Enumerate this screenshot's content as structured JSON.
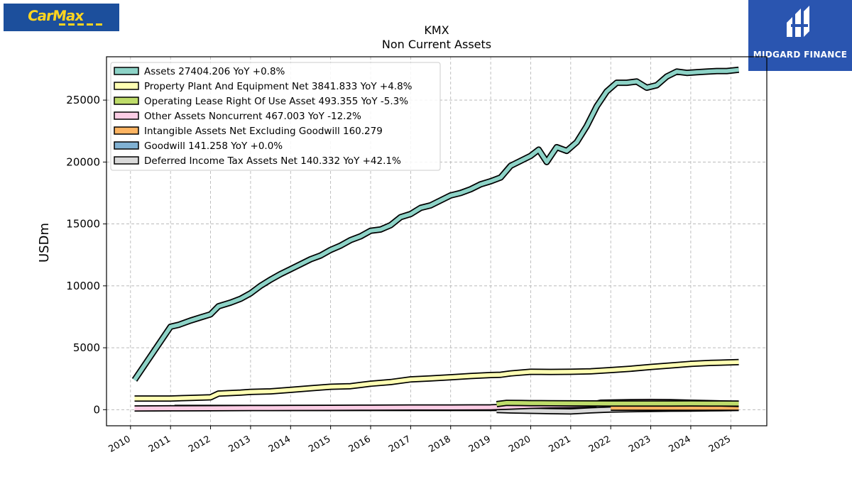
{
  "brand": {
    "logo_text": "CarMax",
    "partner_logo_text": "MIDGARD FINANCE"
  },
  "chart_data": {
    "type": "line",
    "title": "KMX",
    "subtitle": "Non Current  Assets",
    "xlabel": "",
    "ylabel": "USDm",
    "xlim": [
      2009.4,
      2025.9
    ],
    "ylim": [
      -1300,
      28500
    ],
    "x_ticks": [
      "2010",
      "2011",
      "2012",
      "2013",
      "2014",
      "2015",
      "2016",
      "2017",
      "2018",
      "2019",
      "2020",
      "2021",
      "2022",
      "2023",
      "2024",
      "2025"
    ],
    "y_ticks": [
      0,
      5000,
      10000,
      15000,
      20000,
      25000
    ],
    "grid": true,
    "legend_position": "top-left",
    "series": [
      {
        "name": "Assets  27404.206 YoY +0.8%",
        "color": "#8dd3c7",
        "points": [
          [
            2010.1,
            2400
          ],
          [
            2011.0,
            6700
          ],
          [
            2011.2,
            6850
          ],
          [
            2011.5,
            7200
          ],
          [
            2011.75,
            7450
          ],
          [
            2012.0,
            7700
          ],
          [
            2012.2,
            8350
          ],
          [
            2012.5,
            8650
          ],
          [
            2012.75,
            8950
          ],
          [
            2013.0,
            9400
          ],
          [
            2013.25,
            10000
          ],
          [
            2013.5,
            10500
          ],
          [
            2013.75,
            10950
          ],
          [
            2014.0,
            11350
          ],
          [
            2014.25,
            11750
          ],
          [
            2014.5,
            12150
          ],
          [
            2014.75,
            12450
          ],
          [
            2015.0,
            12900
          ],
          [
            2015.25,
            13250
          ],
          [
            2015.5,
            13700
          ],
          [
            2015.75,
            14000
          ],
          [
            2016.0,
            14450
          ],
          [
            2016.25,
            14550
          ],
          [
            2016.5,
            14900
          ],
          [
            2016.75,
            15550
          ],
          [
            2017.0,
            15800
          ],
          [
            2017.25,
            16300
          ],
          [
            2017.5,
            16500
          ],
          [
            2017.75,
            16900
          ],
          [
            2018.0,
            17300
          ],
          [
            2018.25,
            17500
          ],
          [
            2018.5,
            17800
          ],
          [
            2018.75,
            18200
          ],
          [
            2019.0,
            18450
          ],
          [
            2019.25,
            18750
          ],
          [
            2019.5,
            19700
          ],
          [
            2019.75,
            20100
          ],
          [
            2020.0,
            20500
          ],
          [
            2020.2,
            21000
          ],
          [
            2020.4,
            20000
          ],
          [
            2020.65,
            21200
          ],
          [
            2020.9,
            20900
          ],
          [
            2021.15,
            21600
          ],
          [
            2021.4,
            22900
          ],
          [
            2021.65,
            24500
          ],
          [
            2021.9,
            25700
          ],
          [
            2022.15,
            26400
          ],
          [
            2022.4,
            26400
          ],
          [
            2022.65,
            26500
          ],
          [
            2022.9,
            26000
          ],
          [
            2023.15,
            26200
          ],
          [
            2023.4,
            26900
          ],
          [
            2023.65,
            27300
          ],
          [
            2023.9,
            27200
          ],
          [
            2024.15,
            27250
          ],
          [
            2024.4,
            27300
          ],
          [
            2024.65,
            27350
          ],
          [
            2024.9,
            27350
          ],
          [
            2025.2,
            27450
          ]
        ]
      },
      {
        "name": "Property Plant And Equipment Net  3841.833 YoY +4.8%",
        "color": "#ffffb3",
        "points": [
          [
            2010.1,
            900
          ],
          [
            2011.0,
            900
          ],
          [
            2011.5,
            950
          ],
          [
            2012.0,
            1000
          ],
          [
            2012.2,
            1300
          ],
          [
            2012.75,
            1380
          ],
          [
            2013.0,
            1440
          ],
          [
            2013.5,
            1480
          ],
          [
            2014.0,
            1600
          ],
          [
            2014.5,
            1730
          ],
          [
            2015.0,
            1850
          ],
          [
            2015.5,
            1900
          ],
          [
            2016.0,
            2100
          ],
          [
            2016.5,
            2230
          ],
          [
            2017.0,
            2450
          ],
          [
            2017.5,
            2530
          ],
          [
            2018.0,
            2620
          ],
          [
            2018.5,
            2720
          ],
          [
            2019.0,
            2800
          ],
          [
            2019.25,
            2820
          ],
          [
            2019.5,
            2930
          ],
          [
            2020.0,
            3060
          ],
          [
            2020.5,
            3050
          ],
          [
            2021.0,
            3060
          ],
          [
            2021.5,
            3100
          ],
          [
            2022.0,
            3200
          ],
          [
            2022.5,
            3310
          ],
          [
            2023.0,
            3450
          ],
          [
            2023.5,
            3570
          ],
          [
            2024.0,
            3700
          ],
          [
            2024.5,
            3780
          ],
          [
            2025.2,
            3840
          ]
        ]
      },
      {
        "name": "Operating Lease Right Of Use Asset  493.355 YoY -5.3%",
        "color": "#bedc6a",
        "points": [
          [
            2019.15,
            450
          ],
          [
            2019.4,
            550
          ],
          [
            2019.75,
            540
          ],
          [
            2020.0,
            530
          ],
          [
            2020.5,
            520
          ],
          [
            2021.0,
            510
          ],
          [
            2021.5,
            505
          ],
          [
            2022.0,
            500
          ],
          [
            2022.5,
            500
          ],
          [
            2023.0,
            500
          ],
          [
            2023.5,
            500
          ],
          [
            2024.0,
            505
          ],
          [
            2024.5,
            500
          ],
          [
            2025.2,
            493
          ]
        ]
      },
      {
        "name": "Other Assets Noncurrent  467.003 YoY -12.2%",
        "color": "#fccde5",
        "points": [
          [
            2010.1,
            100
          ],
          [
            2011.0,
            110
          ],
          [
            2012.0,
            120
          ],
          [
            2013.0,
            130
          ],
          [
            2014.0,
            140
          ],
          [
            2015.0,
            150
          ],
          [
            2016.0,
            160
          ],
          [
            2017.0,
            170
          ],
          [
            2018.0,
            180
          ],
          [
            2019.0,
            190
          ],
          [
            2019.5,
            250
          ],
          [
            2020.0,
            310
          ],
          [
            2020.5,
            350
          ],
          [
            2021.0,
            370
          ],
          [
            2021.5,
            400
          ],
          [
            2021.75,
            560
          ],
          [
            2022.0,
            580
          ],
          [
            2022.5,
            600
          ],
          [
            2023.0,
            620
          ],
          [
            2023.5,
            610
          ],
          [
            2024.0,
            560
          ],
          [
            2024.5,
            530
          ],
          [
            2025.2,
            467
          ]
        ]
      },
      {
        "name": "Intangible Assets Net Excluding Goodwill  160.279",
        "color": "#fdb462",
        "points": [
          [
            2022.0,
            160
          ],
          [
            2022.5,
            160
          ],
          [
            2023.0,
            160
          ],
          [
            2023.5,
            160
          ],
          [
            2024.0,
            160
          ],
          [
            2024.5,
            160
          ],
          [
            2025.2,
            160
          ]
        ]
      },
      {
        "name": "Goodwill  141.258 YoY +0.0%",
        "color": "#80b1d3",
        "points": [
          [
            2011.1,
            141
          ],
          [
            2012.0,
            141
          ],
          [
            2013.0,
            141
          ],
          [
            2014.0,
            141
          ],
          [
            2015.0,
            141
          ],
          [
            2016.0,
            141
          ],
          [
            2017.0,
            141
          ],
          [
            2018.0,
            141
          ],
          [
            2019.0,
            141
          ],
          [
            2019.15,
            141
          ]
        ]
      },
      {
        "name": "Deferred Income Tax Assets Net  140.332 YoY +42.1%",
        "color": "#d9d9d9",
        "points": [
          [
            2019.15,
            -20
          ],
          [
            2019.5,
            -60
          ],
          [
            2020.0,
            -90
          ],
          [
            2020.5,
            -120
          ],
          [
            2021.0,
            -140
          ],
          [
            2021.5,
            -50
          ],
          [
            2022.0,
            10
          ],
          [
            2022.5,
            40
          ],
          [
            2023.0,
            60
          ],
          [
            2023.5,
            80
          ],
          [
            2024.0,
            90
          ],
          [
            2024.5,
            110
          ],
          [
            2025.2,
            140
          ]
        ]
      }
    ]
  }
}
